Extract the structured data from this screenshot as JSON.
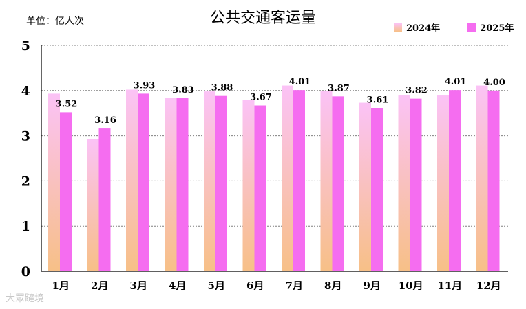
{
  "unit_label": "单位：亿人次",
  "watermark": "大眾躂境",
  "colors": {
    "series_2024_top": "#fbc2f6",
    "series_2024_bottom": "#f7c087",
    "series_2025": "#f56df0",
    "grid": "#808080",
    "axis": "#000000"
  },
  "chart_data": {
    "type": "bar",
    "title": "公共交通客运量",
    "xlabel": "",
    "ylabel": "",
    "ylim": [
      0,
      5
    ],
    "yticks": [
      0,
      1,
      2,
      3,
      4,
      5
    ],
    "grid": true,
    "legend_position": "top-right",
    "categories": [
      "1月",
      "2月",
      "3月",
      "4月",
      "5月",
      "6月",
      "7月",
      "8月",
      "9月",
      "10月",
      "11月",
      "12月"
    ],
    "series": [
      {
        "name": "2024年",
        "values": [
          3.93,
          2.92,
          4.02,
          3.84,
          3.98,
          3.79,
          4.11,
          3.99,
          3.73,
          3.89,
          3.89,
          4.11
        ],
        "labeled": false
      },
      {
        "name": "2025年",
        "values": [
          3.52,
          3.16,
          3.93,
          3.83,
          3.88,
          3.67,
          4.01,
          3.87,
          3.61,
          3.82,
          4.01,
          4.0
        ],
        "labeled": true
      }
    ]
  }
}
